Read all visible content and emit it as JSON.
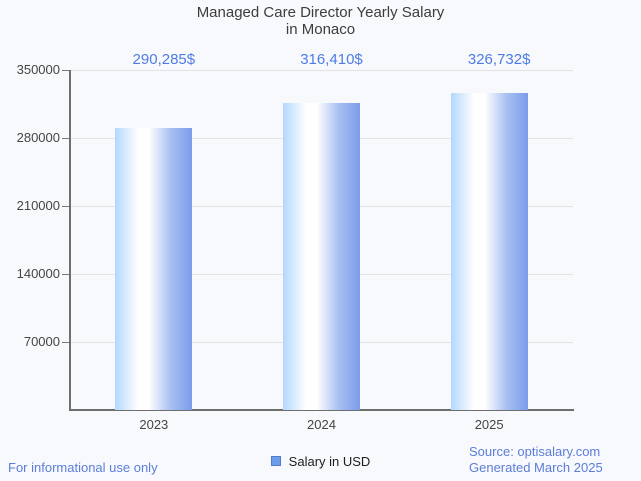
{
  "title": "Managed Care Director Yearly Salary\nin Monaco",
  "chart_data": {
    "type": "bar",
    "categories": [
      "2023",
      "2024",
      "2025"
    ],
    "values": [
      290285,
      316410,
      326732
    ],
    "value_labels": [
      "290,285$",
      "316,410$",
      "326,732$"
    ],
    "series_name": "Salary in USD",
    "ylim": [
      0,
      350000
    ],
    "y_ticks": [
      70000,
      140000,
      210000,
      280000,
      350000
    ],
    "y_tick_labels": [
      "70000",
      "140000",
      "210000",
      "280000",
      "350000"
    ],
    "grid": true,
    "legend_position": "bottom"
  },
  "legend": {
    "salary_label": "Salary in USD"
  },
  "footer": {
    "left": "For informational use only",
    "source": "Source: optisalary.com",
    "generated": "Generated March 2025"
  },
  "colors": {
    "background": "#f8f9fc",
    "title_text": "#3d3d3d",
    "axis_text": "#454545",
    "value_text": "#4d7de2",
    "footer_text": "#5c7ed9",
    "legend_text": "#1e1e1e",
    "axis_line": "#6e6e6e",
    "grid_line": "#e3e3e3",
    "tick_dash": "#7a7a7a",
    "bar_edge_light": "#b2d8fc",
    "bar_white": "#ffffff",
    "bar_mid": "#a9c0f2",
    "bar_edge_dark": "#7b9ce9",
    "legend_square_fill": "#6f9beb",
    "legend_square_border": "#4d7cd0"
  }
}
